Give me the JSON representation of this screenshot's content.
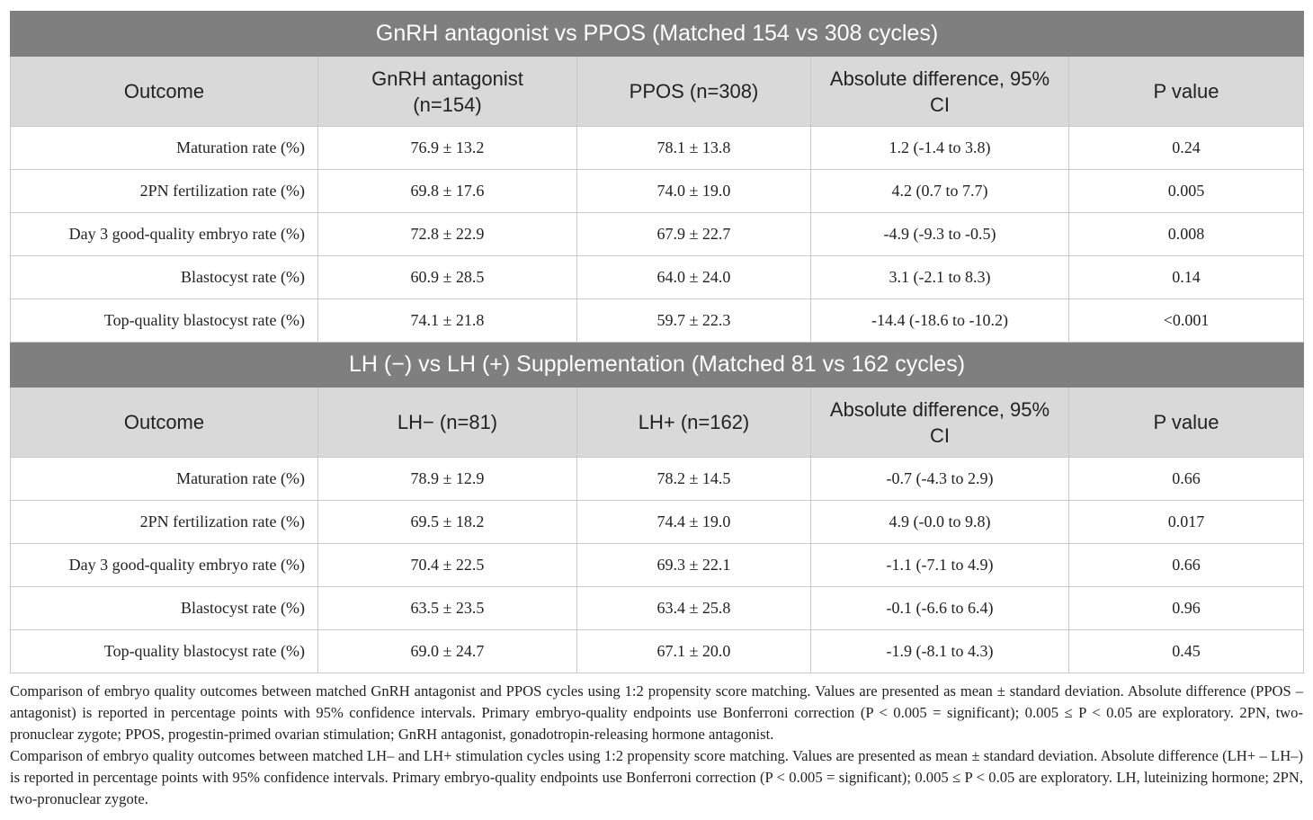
{
  "sections": [
    {
      "title": "GnRH antagonist vs PPOS (Matched 154 vs 308 cycles)",
      "header": [
        "Outcome",
        "GnRH antagonist (n=154)",
        "PPOS (n=308)",
        "Absolute difference, 95% CI",
        "P value"
      ],
      "rows": [
        [
          "Maturation rate (%)",
          "76.9 ± 13.2",
          "78.1 ± 13.8",
          "1.2 (-1.4 to 3.8)",
          "0.24"
        ],
        [
          "2PN fertilization rate (%)",
          "69.8 ± 17.6",
          "74.0 ± 19.0",
          "4.2 (0.7 to 7.7)",
          "0.005"
        ],
        [
          "Day 3 good-quality embryo rate (%)",
          "72.8 ± 22.9",
          "67.9 ± 22.7",
          "-4.9 (-9.3 to -0.5)",
          "0.008"
        ],
        [
          "Blastocyst rate (%)",
          "60.9 ± 28.5",
          "64.0 ± 24.0",
          "3.1 (-2.1 to 8.3)",
          "0.14"
        ],
        [
          "Top-quality blastocyst rate (%)",
          "74.1 ± 21.8",
          "59.7 ± 22.3",
          "-14.4 (-18.6 to -10.2)",
          "<0.001"
        ]
      ]
    },
    {
      "title": "LH (−) vs LH (+) Supplementation (Matched 81 vs 162 cycles)",
      "header": [
        "Outcome",
        "LH− (n=81)",
        "LH+ (n=162)",
        "Absolute difference, 95% CI",
        "P value"
      ],
      "rows": [
        [
          "Maturation rate (%)",
          "78.9 ± 12.9",
          "78.2 ± 14.5",
          "-0.7 (-4.3 to 2.9)",
          "0.66"
        ],
        [
          "2PN fertilization rate (%)",
          "69.5 ± 18.2",
          "74.4 ± 19.0",
          "4.9 (-0.0 to 9.8)",
          "0.017"
        ],
        [
          "Day 3 good-quality embryo rate (%)",
          "70.4 ± 22.5",
          "69.3 ± 22.1",
          "-1.1 (-7.1 to 4.9)",
          "0.66"
        ],
        [
          "Blastocyst rate (%)",
          "63.5 ± 23.5",
          "63.4 ± 25.8",
          "-0.1 (-6.6 to 6.4)",
          "0.96"
        ],
        [
          "Top-quality blastocyst rate (%)",
          "69.0 ± 24.7",
          "67.1 ± 20.0",
          "-1.9 (-8.1 to 4.3)",
          "0.45"
        ]
      ]
    }
  ],
  "notes": [
    "Comparison of embryo quality outcomes between matched GnRH antagonist and PPOS cycles using 1:2 propensity score matching. Values are presented as mean ± standard deviation. Absolute difference (PPOS – antagonist) is reported in percentage points with 95% confidence intervals. Primary embryo-quality endpoints use Bonferroni correction (P < 0.005 = significant); 0.005 ≤ P < 0.05 are exploratory. 2PN, two-pronuclear zygote; PPOS, progestin-primed ovarian stimulation; GnRH antagonist, gonadotropin-releasing hormone antagonist.",
    "Comparison of embryo quality outcomes between matched LH– and LH+ stimulation cycles using 1:2 propensity score matching. Values are presented as mean ± standard deviation. Absolute difference (LH+ – LH–) is reported in percentage points with 95% confidence intervals. Primary embryo-quality endpoints use Bonferroni correction (P < 0.005 = significant); 0.005 ≤ P < 0.05 are exploratory. LH, luteinizing hormone; 2PN, two-pronuclear zygote."
  ]
}
